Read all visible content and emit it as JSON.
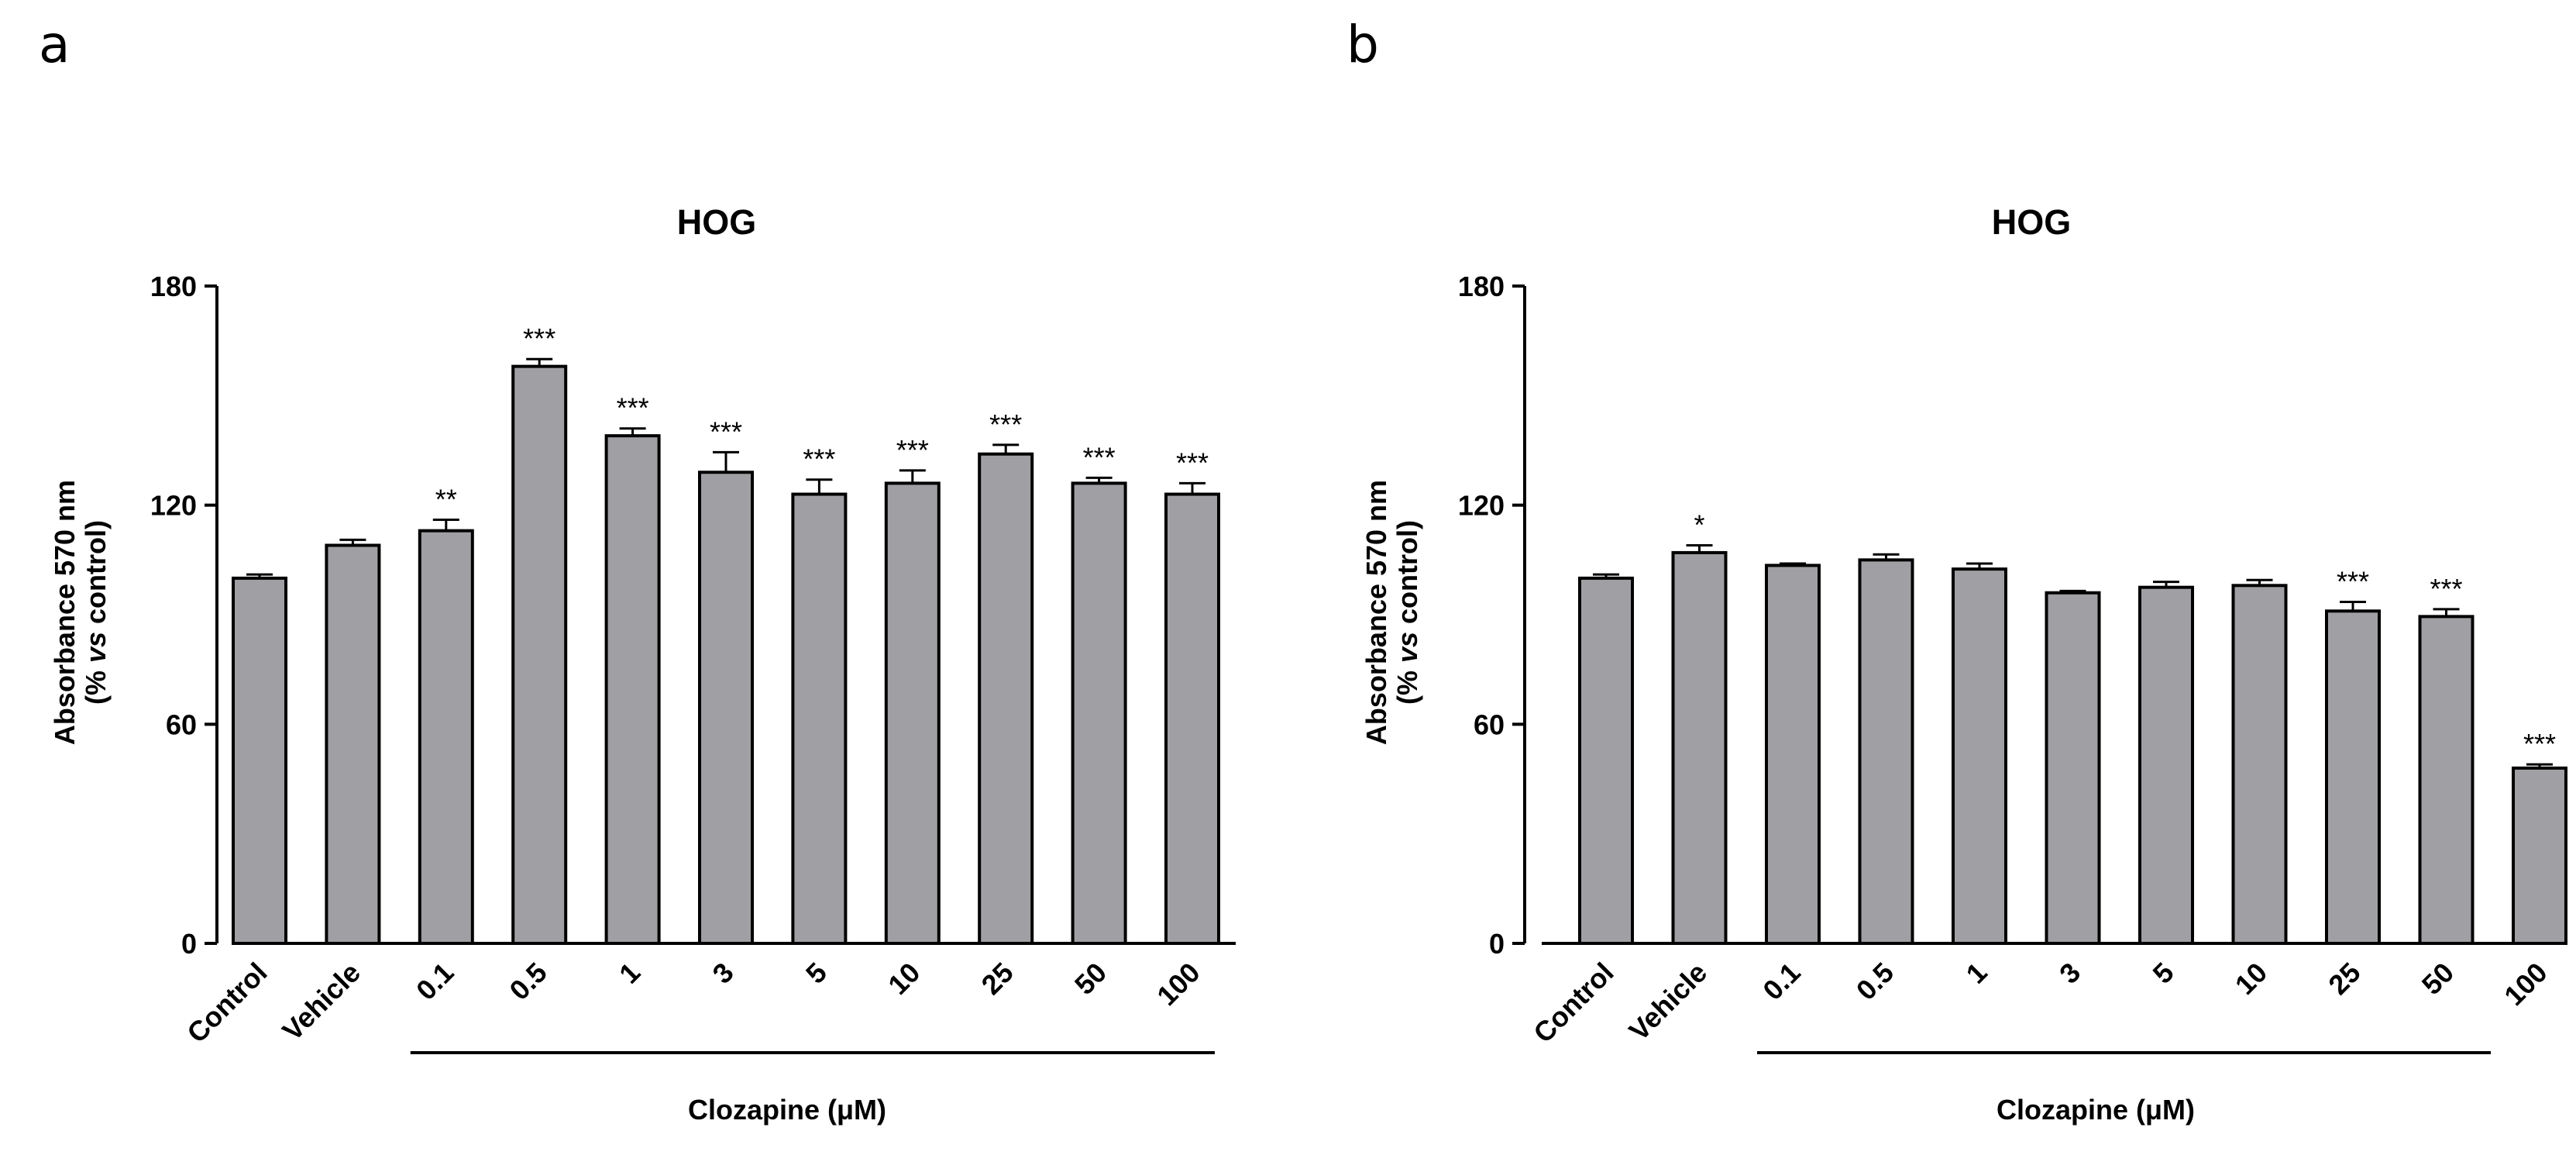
{
  "figure": {
    "panels": [
      "a",
      "b"
    ]
  },
  "chart_data": [
    {
      "panel": "a",
      "type": "bar",
      "title": "HOG",
      "ylabel_line1": "Absorbance 570 nm",
      "ylabel_line2_prefix": "(% ",
      "ylabel_line2_italic": "vs",
      "ylabel_line2_suffix": " control)",
      "xlabel": "Clozapine (μM)",
      "ylim": [
        0,
        180
      ],
      "yticks": [
        0,
        60,
        120,
        180
      ],
      "categories": [
        "Control",
        "Vehicle",
        "0.1",
        "0.5",
        "1",
        "3",
        "5",
        "10",
        "25",
        "50",
        "100"
      ],
      "values": [
        100,
        109,
        113,
        158,
        139,
        129,
        123,
        126,
        134,
        126,
        123
      ],
      "errors": [
        1,
        1.5,
        3,
        2,
        2,
        5.5,
        4,
        3.5,
        2.5,
        1.5,
        3
      ],
      "significance": [
        "",
        "",
        "**",
        "***",
        "***",
        "***",
        "***",
        "***",
        "***",
        "***",
        "***"
      ],
      "bracket_from_category": "0.1",
      "bar_color": "#a0a0a4"
    },
    {
      "panel": "b",
      "type": "bar",
      "title": "HOG",
      "ylabel_line1": "Absorbance 570 nm",
      "ylabel_line2_prefix": "(% ",
      "ylabel_line2_italic": "vs",
      "ylabel_line2_suffix": " control)",
      "xlabel": "Clozapine (μM)",
      "ylim": [
        0,
        180
      ],
      "yticks": [
        0,
        60,
        120,
        180
      ],
      "categories": [
        "Control",
        "Vehicle",
        "0.1",
        "0.5",
        "1",
        "3",
        "5",
        "10",
        "25",
        "50",
        "100"
      ],
      "values": [
        100,
        107,
        103.5,
        105,
        102.5,
        96,
        97.5,
        98,
        91,
        89.5,
        48
      ],
      "errors": [
        1,
        2,
        0.5,
        1.5,
        1.5,
        0.5,
        1.5,
        1.5,
        2.5,
        2,
        1
      ],
      "significance": [
        "",
        "*",
        "",
        "",
        "",
        "",
        "",
        "",
        "***",
        "***",
        "***"
      ],
      "bracket_from_category": "0.1",
      "bar_color": "#a0a0a4"
    }
  ]
}
